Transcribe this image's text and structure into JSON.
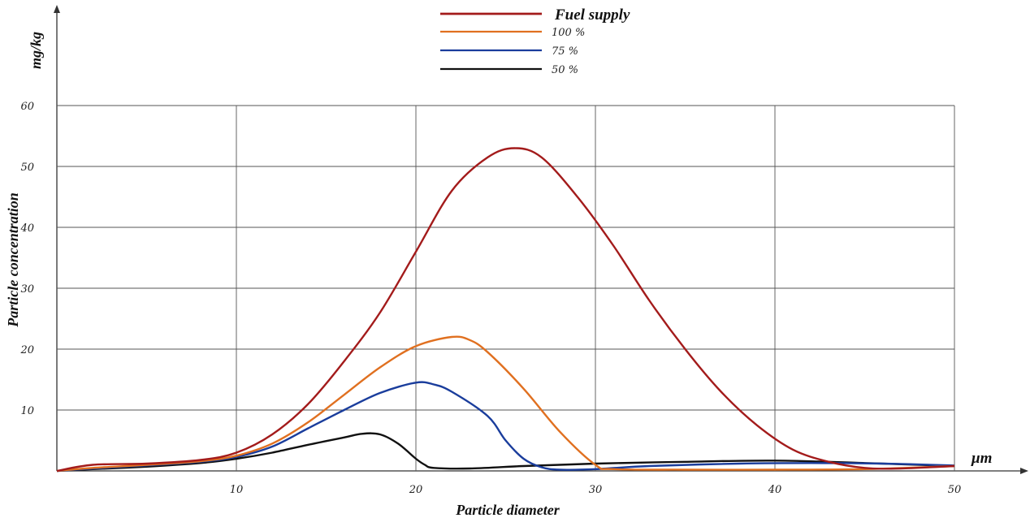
{
  "chart_data": {
    "type": "line",
    "title": "",
    "xlabel": "Particle diameter",
    "ylabel": "Particle concentration",
    "y_unit": "mg/kg",
    "x_unit": "μm",
    "xlim": [
      0,
      50
    ],
    "ylim": [
      0,
      60
    ],
    "x_ticks": [
      10,
      20,
      30,
      40,
      50
    ],
    "y_ticks": [
      10,
      20,
      30,
      40,
      50,
      60
    ],
    "grid": true,
    "legend_position": "top-center",
    "series": [
      {
        "name": "Fuel supply",
        "color": "#a31b1b",
        "points": [
          [
            0,
            0
          ],
          [
            2,
            1
          ],
          [
            5,
            1.2
          ],
          [
            8,
            1.8
          ],
          [
            10,
            3
          ],
          [
            12,
            6
          ],
          [
            14,
            11
          ],
          [
            16,
            18
          ],
          [
            18,
            26
          ],
          [
            20,
            36
          ],
          [
            22,
            46
          ],
          [
            24,
            51.5
          ],
          [
            25.5,
            53
          ],
          [
            27,
            51.5
          ],
          [
            29,
            45
          ],
          [
            31,
            37
          ],
          [
            33,
            28
          ],
          [
            35,
            20
          ],
          [
            37,
            13
          ],
          [
            39,
            7.5
          ],
          [
            41,
            3.5
          ],
          [
            43,
            1.5
          ],
          [
            45,
            0.5
          ],
          [
            47,
            0.4
          ],
          [
            50,
            0.8
          ]
        ]
      },
      {
        "name": "100 %",
        "color": "#e07020",
        "points": [
          [
            0,
            0
          ],
          [
            2,
            0.5
          ],
          [
            5,
            1
          ],
          [
            8,
            1.6
          ],
          [
            10,
            2.5
          ],
          [
            12,
            4.5
          ],
          [
            14,
            8
          ],
          [
            16,
            12.5
          ],
          [
            18,
            17
          ],
          [
            20,
            20.5
          ],
          [
            22,
            22
          ],
          [
            23,
            21.5
          ],
          [
            24,
            19.5
          ],
          [
            26,
            13.5
          ],
          [
            28,
            6.5
          ],
          [
            30,
            1
          ],
          [
            31,
            0.3
          ],
          [
            35,
            0.2
          ],
          [
            40,
            0.2
          ],
          [
            45,
            0.3
          ],
          [
            50,
            0.8
          ]
        ]
      },
      {
        "name": "75 %",
        "color": "#1a3d9c",
        "points": [
          [
            0,
            0
          ],
          [
            2,
            0.4
          ],
          [
            5,
            0.9
          ],
          [
            8,
            1.5
          ],
          [
            10,
            2.3
          ],
          [
            12,
            4
          ],
          [
            14,
            7
          ],
          [
            16,
            10
          ],
          [
            18,
            12.8
          ],
          [
            20,
            14.5
          ],
          [
            21,
            14.2
          ],
          [
            22,
            13
          ],
          [
            24,
            9
          ],
          [
            25,
            5
          ],
          [
            26,
            2
          ],
          [
            27,
            0.6
          ],
          [
            28,
            0.2
          ],
          [
            30,
            0.3
          ],
          [
            33,
            0.8
          ],
          [
            38,
            1.2
          ],
          [
            42,
            1.3
          ],
          [
            46,
            1.2
          ],
          [
            50,
            0.9
          ]
        ]
      },
      {
        "name": "50 %",
        "color": "#111111",
        "points": [
          [
            0,
            0
          ],
          [
            2,
            0.3
          ],
          [
            5,
            0.7
          ],
          [
            8,
            1.3
          ],
          [
            10,
            2
          ],
          [
            12,
            3
          ],
          [
            14,
            4.3
          ],
          [
            16,
            5.5
          ],
          [
            17,
            6.1
          ],
          [
            18,
            6
          ],
          [
            19,
            4.5
          ],
          [
            20,
            2
          ],
          [
            20.5,
            1
          ],
          [
            21,
            0.5
          ],
          [
            23,
            0.4
          ],
          [
            26,
            0.8
          ],
          [
            30,
            1.2
          ],
          [
            35,
            1.5
          ],
          [
            40,
            1.7
          ],
          [
            45,
            1.3
          ],
          [
            50,
            0.8
          ]
        ]
      }
    ]
  }
}
